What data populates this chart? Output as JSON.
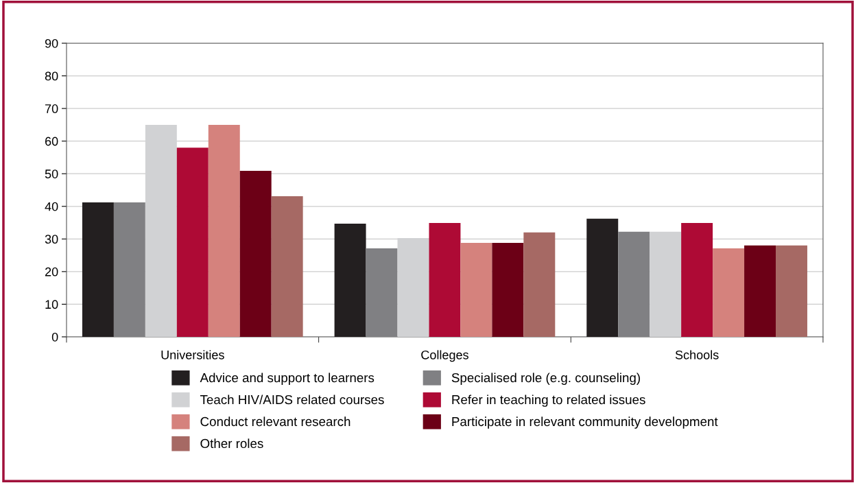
{
  "chart_data": {
    "type": "bar",
    "categories": [
      "Universities",
      "Colleges",
      "Schools"
    ],
    "series": [
      {
        "name": "Advice and support to learners",
        "color": "#231f20",
        "values": [
          41.2,
          34.7,
          36.2
        ]
      },
      {
        "name": "Specialised role (e.g. counseling)",
        "color": "#808083",
        "values": [
          41.2,
          27.1,
          32.2
        ]
      },
      {
        "name": "Teach HIV/AIDS related courses",
        "color": "#d1d2d4",
        "values": [
          65,
          30.3,
          32.2
        ]
      },
      {
        "name": "Refer in teaching to related issues",
        "color": "#ae0a35",
        "values": [
          58,
          34.9,
          34.9
        ]
      },
      {
        "name": "Conduct relevant research",
        "color": "#d5827d",
        "values": [
          65,
          28.8,
          27.1
        ]
      },
      {
        "name": "Participate in relevant community development",
        "color": "#6c0016",
        "values": [
          50.9,
          28.8,
          28
        ]
      },
      {
        "name": "Other roles",
        "color": "#a66964",
        "values": [
          43.1,
          32,
          28
        ]
      }
    ],
    "ylim": [
      0,
      90
    ],
    "yticks": [
      0,
      10,
      20,
      30,
      40,
      50,
      60,
      70,
      80,
      90
    ],
    "grid": "y",
    "legend": "bottom"
  }
}
